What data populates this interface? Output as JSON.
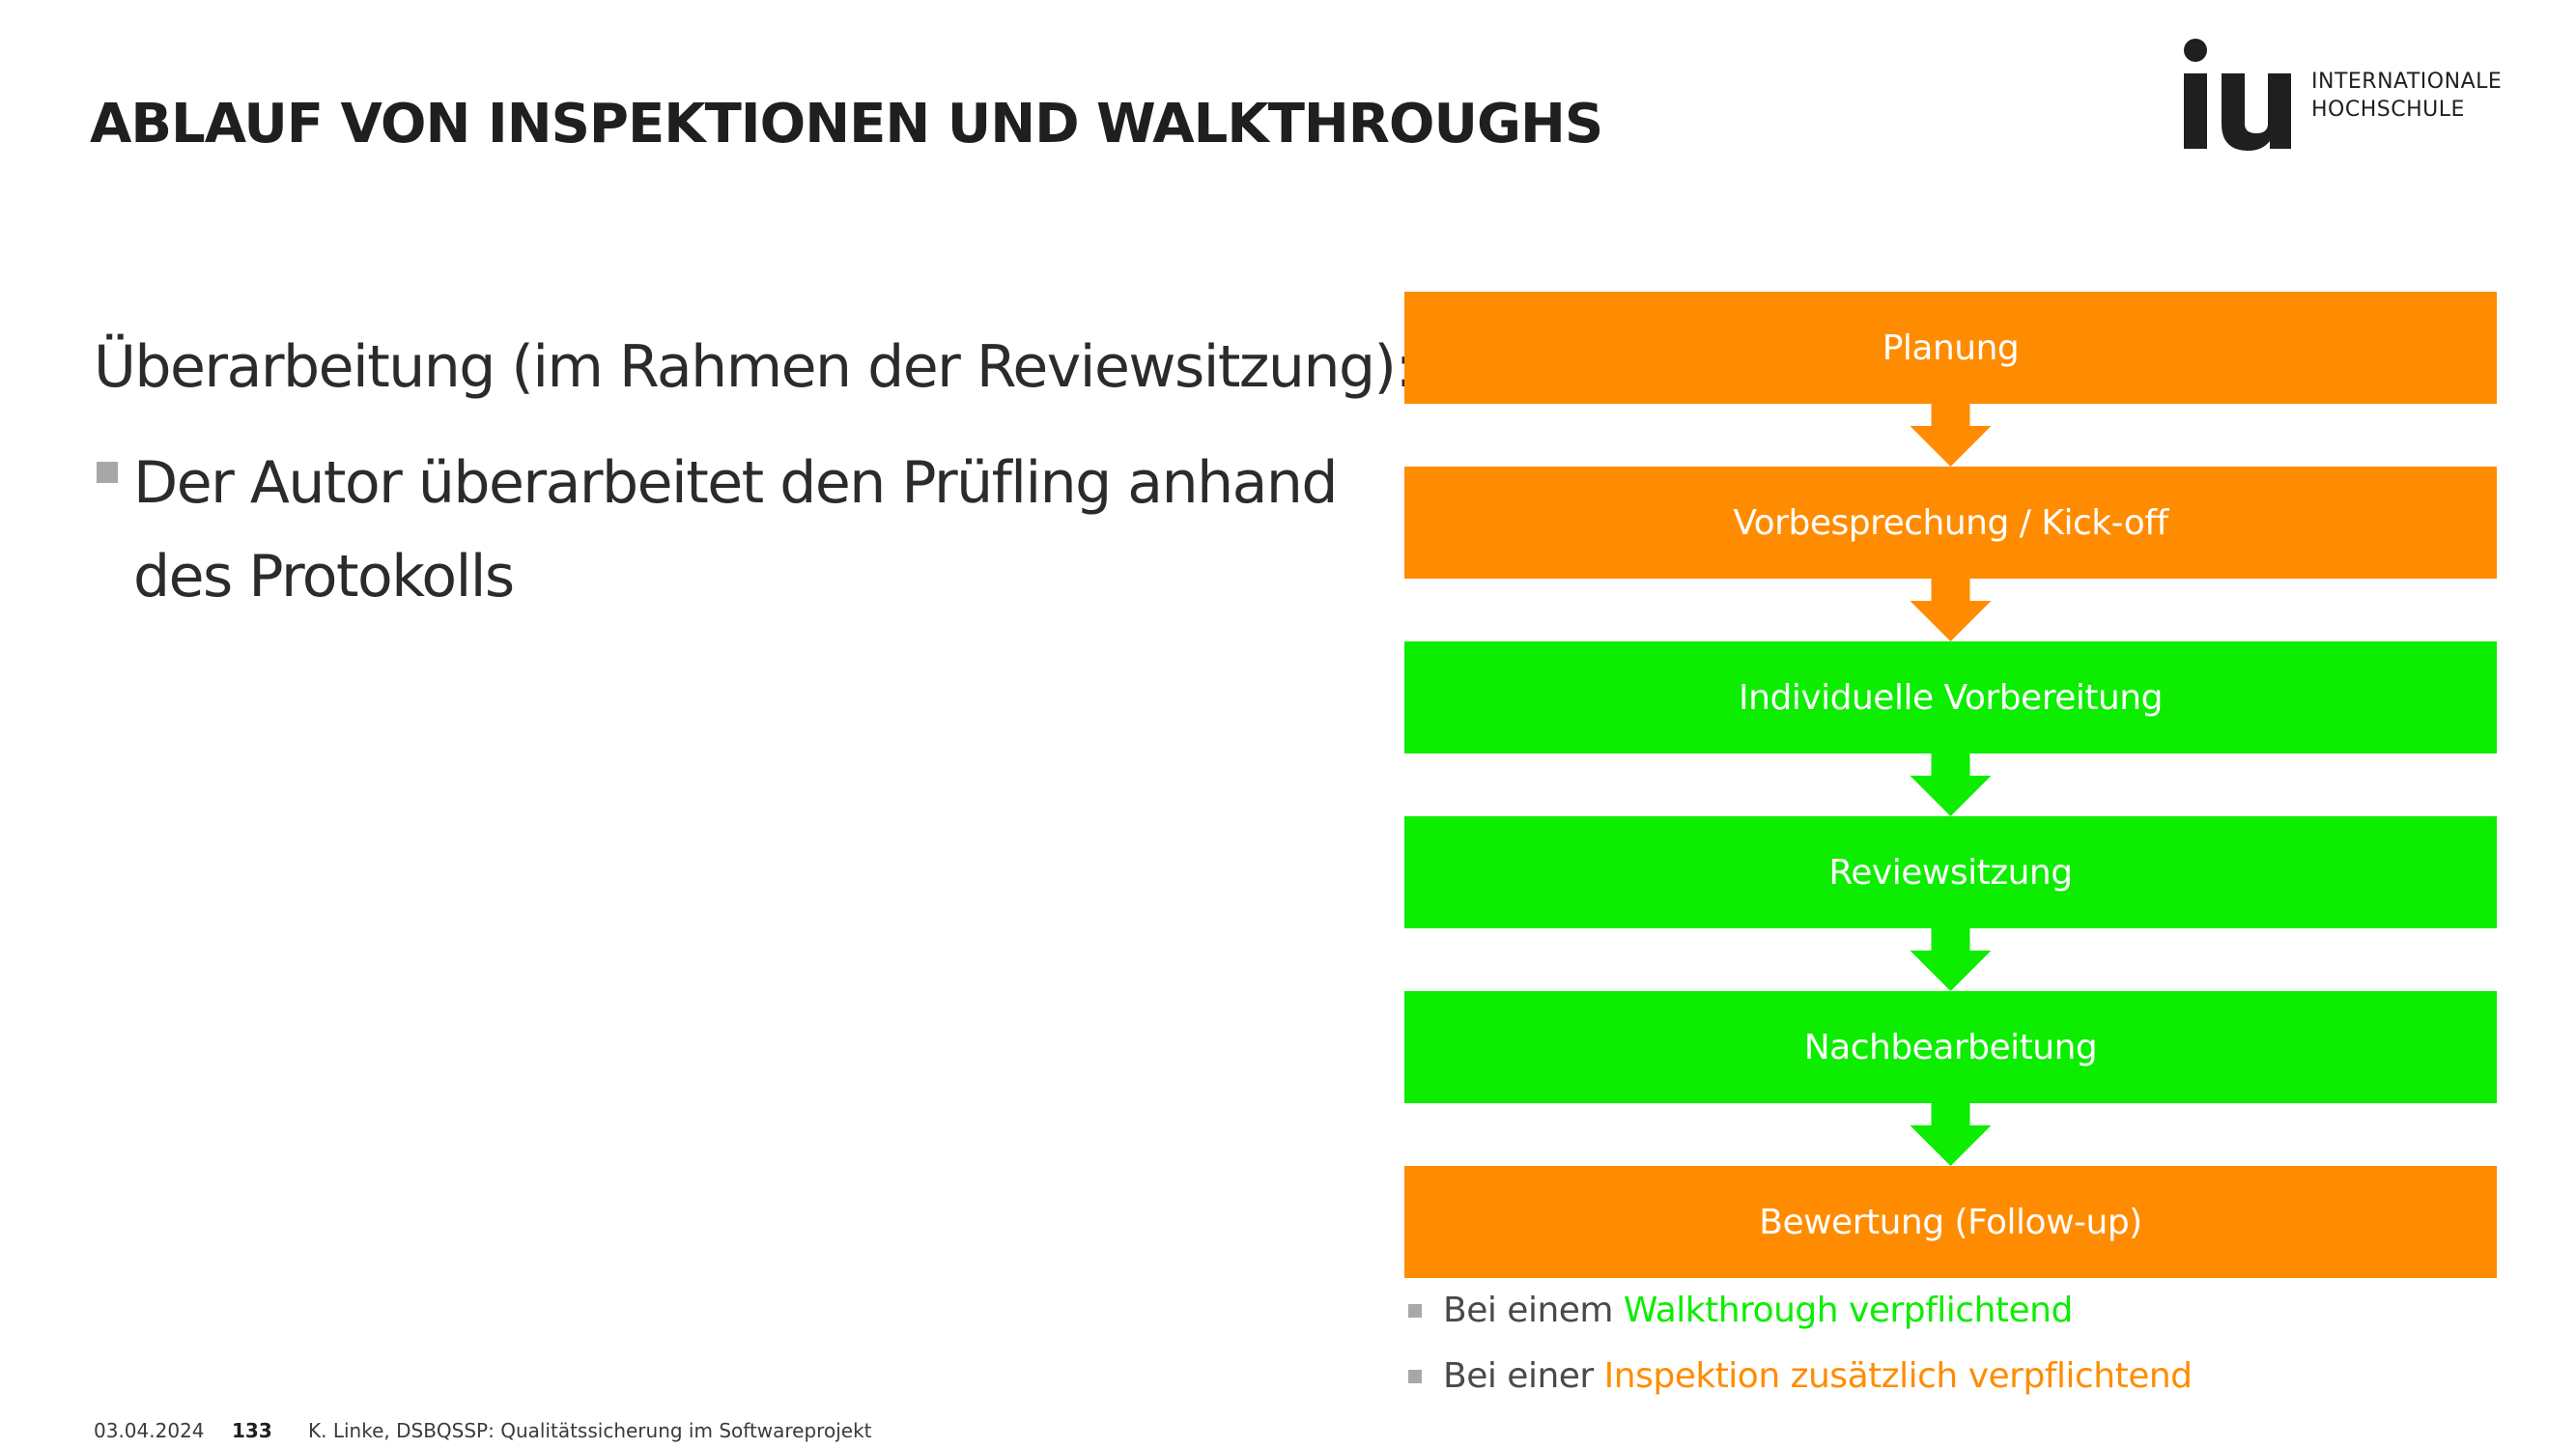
{
  "header": {
    "title": "ABLAUF VON INSPEKTIONEN UND WALKTHROUGHS",
    "logo": {
      "mark": "iu",
      "line1": "INTERNATIONALE",
      "line2": "HOCHSCHULE",
      "color": "#1f1f1f"
    }
  },
  "content": {
    "heading": "Überarbeitung (im Rahmen der Reviewsitzung):",
    "bullet_line1": "Der Autor überarbeitet den Prüfling anhand",
    "bullet_line2": "des Protokolls"
  },
  "flow": {
    "colors": {
      "orange": "#ff8c00",
      "green": "#0ded00"
    },
    "steps": [
      {
        "label": "Planung",
        "color": "orange"
      },
      {
        "label": "Vorbesprechung / Kick-off",
        "color": "orange"
      },
      {
        "label": "Individuelle Vorbereitung",
        "color": "green"
      },
      {
        "label": "Reviewsitzung",
        "color": "green"
      },
      {
        "label": "Nachbearbeitung",
        "color": "green"
      },
      {
        "label": "Bewertung (Follow-up)",
        "color": "orange"
      }
    ]
  },
  "notes": [
    {
      "prefix": "Bei einem ",
      "highlight": "Walkthrough verpflichtend",
      "color": "green"
    },
    {
      "prefix": "Bei einer ",
      "highlight": "Inspektion zusätzlich verpflichtend",
      "color": "orange"
    }
  ],
  "footer": {
    "date": "03.04.2024",
    "page": "133",
    "source": "K. Linke, DSBQSSP: Qualitätssicherung im Softwareprojekt"
  }
}
